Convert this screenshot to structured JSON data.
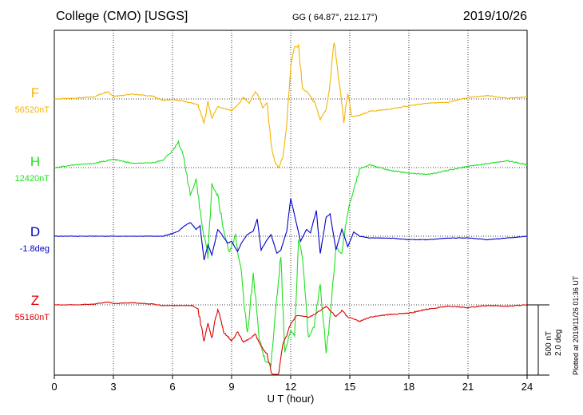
{
  "header": {
    "station": "College (CMO)  [USGS]",
    "coords": "GG ( 64.87°, 212.17°)",
    "date": "2019/10/26"
  },
  "scale": {
    "line1": "500 nT",
    "line2": "2.0 deg"
  },
  "plotted_note": "Plotted at 2019/11/26 01:36 UT",
  "colors": {
    "F": "#f4b400",
    "H": "#20e020",
    "D": "#0000cc",
    "Z": "#dd0000",
    "grid": "#000000"
  },
  "chart_data": {
    "type": "line",
    "xlabel": "U T (hour)",
    "xlim": [
      0,
      24
    ],
    "xticks": [
      "0",
      "3",
      "6",
      "9",
      "12",
      "15",
      "18",
      "21",
      "24"
    ],
    "grid": true,
    "series": [
      {
        "name": "F",
        "baseline_label": "56520nT",
        "color": "#f4b400",
        "x": [
          0,
          1,
          2,
          2.7,
          3,
          4,
          5,
          5.5,
          6,
          6.5,
          7,
          7.3,
          7.6,
          7.8,
          8,
          8.3,
          8.6,
          9,
          9.3,
          9.6,
          9.9,
          10.2,
          10.4,
          10.6,
          10.8,
          11,
          11.2,
          11.4,
          11.6,
          11.8,
          12,
          12.2,
          12.4,
          12.6,
          12.9,
          13.2,
          13.5,
          13.8,
          14,
          14.2,
          14.5,
          14.7,
          14.9,
          15.1,
          15.5,
          16,
          17,
          18,
          19,
          20,
          21,
          22,
          23,
          24
        ],
        "y": [
          0,
          5,
          15,
          55,
          20,
          35,
          20,
          -10,
          -5,
          -15,
          -30,
          -45,
          -180,
          -20,
          -140,
          -55,
          -70,
          -85,
          -45,
          10,
          -30,
          55,
          10,
          -70,
          -20,
          -330,
          -460,
          -500,
          -420,
          -180,
          240,
          380,
          380,
          75,
          40,
          -25,
          -150,
          -80,
          100,
          420,
          80,
          -170,
          45,
          -130,
          -120,
          -90,
          -75,
          -50,
          -30,
          -25,
          10,
          25,
          5,
          15
        ]
      },
      {
        "name": "H",
        "baseline_label": "12420nT",
        "color": "#20e020",
        "x": [
          0,
          1,
          2,
          3,
          4,
          5,
          5.5,
          6,
          6.3,
          6.6,
          6.9,
          7.2,
          7.5,
          7.8,
          8,
          8.3,
          8.6,
          8.9,
          9.2,
          9.5,
          9.8,
          10.1,
          10.4,
          10.7,
          11,
          11.2,
          11.5,
          11.7,
          12,
          12.2,
          12.4,
          12.6,
          12.9,
          13.2,
          13.5,
          13.8,
          14,
          14.3,
          14.6,
          14.9,
          15.2,
          15.5,
          16,
          17,
          18,
          19,
          20,
          21,
          22,
          23,
          24
        ],
        "y": [
          0,
          20,
          30,
          60,
          30,
          35,
          55,
          120,
          190,
          60,
          -200,
          -100,
          -410,
          -640,
          -120,
          -210,
          -460,
          -620,
          -490,
          -780,
          -1220,
          -760,
          -1240,
          -1410,
          -1430,
          -1090,
          -650,
          -1350,
          -1180,
          -1230,
          -520,
          -650,
          -1240,
          -1140,
          -850,
          -1340,
          -1100,
          -580,
          -630,
          -320,
          -160,
          -10,
          20,
          -20,
          -40,
          -50,
          -20,
          10,
          30,
          50,
          20
        ]
      },
      {
        "name": "D",
        "baseline_label": "-1.8deg",
        "color": "#0000cc",
        "x": [
          0,
          1,
          2,
          3,
          4,
          5,
          5.5,
          6,
          6.3,
          6.6,
          6.9,
          7.2,
          7.4,
          7.6,
          7.8,
          8,
          8.3,
          8.5,
          8.8,
          9,
          9.3,
          9.5,
          9.8,
          10.1,
          10.3,
          10.5,
          10.8,
          11,
          11.3,
          11.5,
          11.8,
          12,
          12.3,
          12.5,
          12.8,
          13,
          13.3,
          13.5,
          13.8,
          14,
          14.3,
          14.6,
          14.9,
          15.2,
          15.5,
          16,
          17,
          18,
          19,
          20,
          21,
          22,
          23,
          24
        ],
        "y": [
          0,
          0,
          0,
          0,
          0,
          0,
          0,
          0.08,
          0.15,
          0.3,
          0.4,
          0.2,
          0.3,
          -0.7,
          -0.25,
          -0.55,
          0.2,
          0.05,
          -0.2,
          -0.15,
          -0.45,
          -0.2,
          0.05,
          0.15,
          0.5,
          -0.4,
          -0.1,
          0.05,
          -0.5,
          -0.4,
          0.15,
          1.1,
          0.35,
          -0.15,
          0.2,
          0.1,
          0.75,
          -0.5,
          0.55,
          0.65,
          -0.4,
          0.2,
          -0.3,
          0.12,
          0,
          -0.05,
          -0.05,
          -0.1,
          -0.1,
          -0.05,
          -0.05,
          -0.1,
          -0.05,
          0
        ]
      },
      {
        "name": "Z",
        "baseline_label": "55160nT",
        "color": "#dd0000",
        "x": [
          0,
          1,
          2,
          2.7,
          3,
          4,
          5,
          5.5,
          6,
          6.5,
          7,
          7.3,
          7.6,
          7.8,
          8,
          8.3,
          8.6,
          9,
          9.3,
          9.6,
          9.9,
          10.2,
          10.5,
          10.8,
          11,
          11.2,
          11.4,
          11.6,
          11.8,
          12,
          12.3,
          12.6,
          12.9,
          13.2,
          13.5,
          13.8,
          14,
          14.3,
          14.6,
          14.9,
          15.2,
          15.5,
          16,
          17,
          18,
          19,
          20,
          21,
          22,
          23,
          24
        ],
        "y": [
          0,
          0,
          5,
          20,
          10,
          15,
          5,
          -5,
          -5,
          -5,
          -5,
          -30,
          -270,
          -140,
          -250,
          -20,
          -200,
          -260,
          -200,
          -270,
          -250,
          -210,
          -300,
          -360,
          -480,
          -560,
          -500,
          -290,
          -220,
          -140,
          -80,
          -80,
          -90,
          -70,
          -40,
          -10,
          -40,
          -90,
          -40,
          -90,
          -100,
          -120,
          -90,
          -70,
          -60,
          -30,
          -10,
          -20,
          -5,
          -10,
          0
        ]
      }
    ]
  }
}
